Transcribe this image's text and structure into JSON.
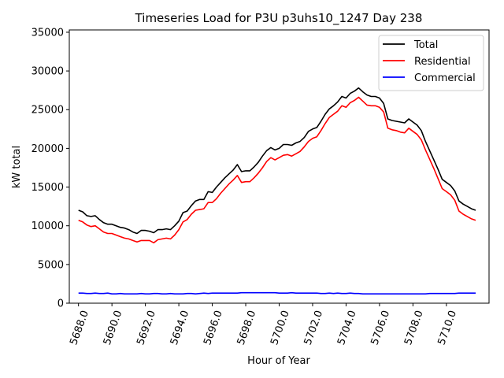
{
  "chart_data": {
    "type": "line",
    "title": "Timeseries Load for P3U p3uhs10_1247  Day 238",
    "xlabel": "Hour of Year",
    "ylabel": "kW total",
    "xlim": [
      5687.45,
      5712.55
    ],
    "ylim": [
      0,
      35300
    ],
    "x_ticks": [
      5688,
      5690,
      5692,
      5694,
      5696,
      5698,
      5700,
      5702,
      5704,
      5706,
      5708,
      5710
    ],
    "x_tick_labels": [
      "5688.0",
      "5690.0",
      "5692.0",
      "5694.0",
      "5696.0",
      "5698.0",
      "5700.0",
      "5702.0",
      "5704.0",
      "5706.0",
      "5708.0",
      "5710.0"
    ],
    "y_ticks": [
      0,
      5000,
      10000,
      15000,
      20000,
      25000,
      30000,
      35000
    ],
    "y_tick_labels": [
      "0",
      "5000",
      "10000",
      "15000",
      "20000",
      "25000",
      "30000",
      "35000"
    ],
    "grid": false,
    "legend_position": "top-right",
    "x": [
      5688.0,
      5688.25,
      5688.5,
      5688.75,
      5689.0,
      5689.25,
      5689.5,
      5689.75,
      5690.0,
      5690.25,
      5690.5,
      5690.75,
      5691.0,
      5691.25,
      5691.5,
      5691.75,
      5692.0,
      5692.25,
      5692.5,
      5692.75,
      5693.0,
      5693.25,
      5693.5,
      5693.75,
      5694.0,
      5694.25,
      5694.5,
      5694.75,
      5695.0,
      5695.25,
      5695.5,
      5695.75,
      5696.0,
      5696.25,
      5696.5,
      5696.75,
      5697.0,
      5697.25,
      5697.5,
      5697.75,
      5698.0,
      5698.25,
      5698.5,
      5698.75,
      5699.0,
      5699.25,
      5699.5,
      5699.75,
      5700.0,
      5700.25,
      5700.5,
      5700.75,
      5701.0,
      5701.25,
      5701.5,
      5701.75,
      5702.0,
      5702.25,
      5702.5,
      5702.75,
      5703.0,
      5703.25,
      5703.5,
      5703.75,
      5704.0,
      5704.25,
      5704.5,
      5704.75,
      5705.0,
      5705.25,
      5705.5,
      5705.75,
      5706.0,
      5706.25,
      5706.5,
      5706.75,
      5707.0,
      5707.25,
      5707.5,
      5707.75,
      5708.0,
      5708.25,
      5708.5,
      5708.75,
      5709.0,
      5709.25,
      5709.5,
      5709.75,
      5710.0,
      5710.25,
      5710.5,
      5710.75,
      5711.0,
      5711.25,
      5711.5,
      5711.75
    ],
    "series": [
      {
        "name": "Total",
        "color": "#000000",
        "values": [
          12000,
          11800,
          11300,
          11200,
          11300,
          10800,
          10400,
          10200,
          10200,
          10000,
          9800,
          9700,
          9500,
          9200,
          9000,
          9400,
          9400,
          9300,
          9100,
          9500,
          9500,
          9600,
          9500,
          10000,
          10600,
          11700,
          11900,
          12600,
          13200,
          13400,
          13400,
          14400,
          14300,
          15000,
          15600,
          16200,
          16700,
          17200,
          17900,
          17000,
          17100,
          17100,
          17600,
          18200,
          19000,
          19700,
          20100,
          19800,
          20000,
          20500,
          20500,
          20400,
          20700,
          20900,
          21400,
          22200,
          22500,
          22700,
          23500,
          24400,
          25100,
          25500,
          26000,
          26700,
          26500,
          27100,
          27400,
          27800,
          27300,
          26900,
          26700,
          26700,
          26500,
          25800,
          23800,
          23600,
          23500,
          23400,
          23300,
          23800,
          23400,
          23000,
          22300,
          20900,
          19700,
          18500,
          17300,
          16000,
          15600,
          15200,
          14500,
          13200,
          12800,
          12500,
          12200,
          12000
        ]
      },
      {
        "name": "Residential",
        "color": "#ff0000",
        "values": [
          10700,
          10500,
          10100,
          9900,
          10000,
          9600,
          9200,
          9000,
          9000,
          8800,
          8600,
          8400,
          8300,
          8100,
          7900,
          8100,
          8100,
          8100,
          7800,
          8200,
          8300,
          8400,
          8300,
          8800,
          9500,
          10500,
          10800,
          11500,
          12000,
          12100,
          12200,
          13000,
          13000,
          13500,
          14200,
          14800,
          15400,
          15900,
          16500,
          15600,
          15700,
          15700,
          16200,
          16800,
          17500,
          18300,
          18800,
          18500,
          18800,
          19100,
          19200,
          19000,
          19300,
          19600,
          20200,
          20900,
          21300,
          21500,
          22300,
          23200,
          24000,
          24400,
          24800,
          25500,
          25300,
          25900,
          26200,
          26600,
          26100,
          25600,
          25500,
          25500,
          25300,
          24700,
          22600,
          22400,
          22300,
          22100,
          22000,
          22600,
          22200,
          21800,
          21100,
          19800,
          18600,
          17400,
          16100,
          14800,
          14400,
          14000,
          13300,
          11900,
          11500,
          11200,
          10900,
          10700
        ]
      },
      {
        "name": "Commercial",
        "color": "#0000ff",
        "values": [
          1300,
          1300,
          1250,
          1250,
          1300,
          1250,
          1250,
          1300,
          1200,
          1200,
          1250,
          1200,
          1200,
          1200,
          1200,
          1250,
          1200,
          1200,
          1250,
          1250,
          1200,
          1200,
          1250,
          1200,
          1200,
          1200,
          1250,
          1250,
          1200,
          1250,
          1300,
          1250,
          1300,
          1300,
          1300,
          1300,
          1300,
          1300,
          1300,
          1350,
          1350,
          1350,
          1350,
          1350,
          1350,
          1350,
          1350,
          1350,
          1300,
          1300,
          1300,
          1350,
          1300,
          1300,
          1300,
          1300,
          1300,
          1300,
          1250,
          1250,
          1300,
          1250,
          1300,
          1250,
          1250,
          1300,
          1250,
          1250,
          1200,
          1200,
          1200,
          1200,
          1200,
          1200,
          1200,
          1200,
          1200,
          1200,
          1200,
          1200,
          1200,
          1200,
          1200,
          1200,
          1250,
          1250,
          1250,
          1250,
          1250,
          1250,
          1250,
          1300,
          1300,
          1300,
          1300,
          1300
        ]
      }
    ]
  }
}
